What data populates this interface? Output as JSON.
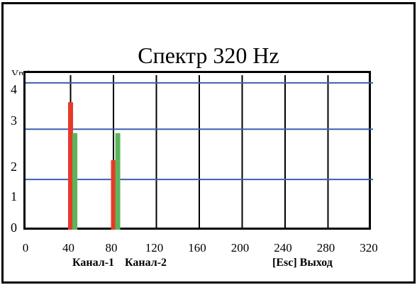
{
  "window": {
    "title": "Спектр 320 Hz",
    "unit_label": "Vm/s"
  },
  "legend": {
    "channel_1": "Канал-1",
    "channel_2": "Канал-2"
  },
  "hint": {
    "exit": "[Esc] Выход"
  },
  "colors": {
    "channel_1": "#e8392a",
    "channel_2": "#5bb55b",
    "reference_lines": "#3b5fb0"
  },
  "chart_data": {
    "type": "bar",
    "title": "Спектр 320 Hz",
    "ylabel": "Vm/s",
    "xlabel": "",
    "x_ticks": [
      "0",
      "40",
      "80",
      "120",
      "160",
      "200",
      "240",
      "280",
      "320"
    ],
    "y_ticks": [
      "0",
      "1",
      "2",
      "3",
      "4"
    ],
    "xlim": [
      0,
      320
    ],
    "ylim": [
      0,
      4
    ],
    "grid": true,
    "reference_levels": [
      1.3,
      2.6,
      3.8
    ],
    "series": [
      {
        "name": "Канал-1",
        "color": "#e8392a",
        "x": [
          40,
          80,
          80
        ],
        "y": [
          3.3,
          1.8,
          0.4
        ]
      },
      {
        "name": "Канал-2",
        "color": "#5bb55b",
        "x": [
          44,
          84
        ],
        "y": [
          2.5,
          2.5
        ]
      }
    ]
  }
}
